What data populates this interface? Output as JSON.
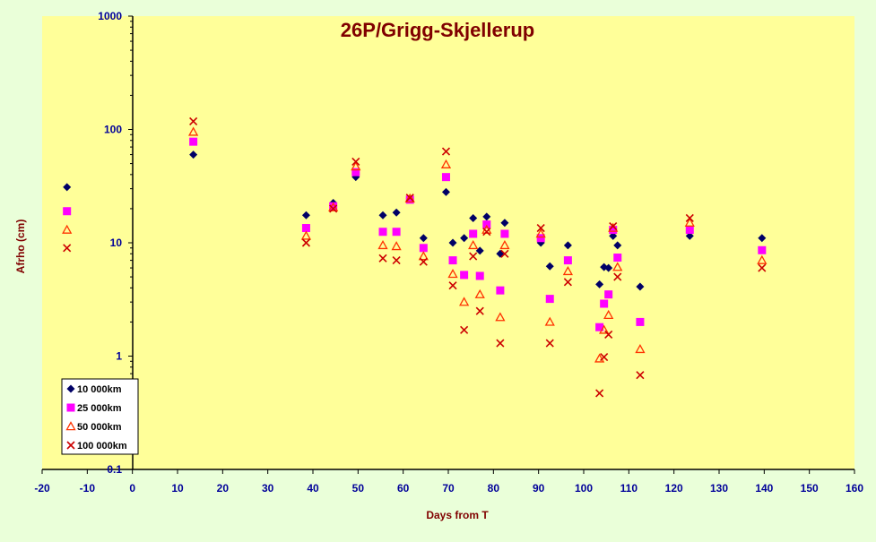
{
  "chart_data": {
    "type": "scatter",
    "title": "26P/Grigg-Skjellerup",
    "xlabel": "Days from  T",
    "ylabel": "Afrho (cm)",
    "xlim": [
      -20,
      160
    ],
    "ylim": [
      0.1,
      1000
    ],
    "yscale": "log",
    "x_ticks": [
      "-20",
      "-10",
      "0",
      "10",
      "20",
      "30",
      "40",
      "50",
      "60",
      "70",
      "80",
      "90",
      "100",
      "110",
      "120",
      "130",
      "140",
      "150",
      "160"
    ],
    "y_ticks": [
      "0.1",
      "1",
      "10",
      "100",
      "1000"
    ],
    "grid": false,
    "legend_position": "bottom-left",
    "colors": {
      "background": "#ffff99",
      "title": "#800000",
      "tick_labels": "#000099",
      "axis_title": "#800000"
    },
    "series": [
      {
        "name": "10 000km",
        "marker": "diamond",
        "color": "#000066",
        "points": [
          [
            -14.5,
            31
          ],
          [
            13.5,
            60
          ],
          [
            38.5,
            17.5
          ],
          [
            44.5,
            22.5
          ],
          [
            49.5,
            38
          ],
          [
            55.5,
            17.5
          ],
          [
            58.5,
            18.5
          ],
          [
            61.5,
            24.5
          ],
          [
            64.5,
            11
          ],
          [
            69.5,
            28
          ],
          [
            71,
            10
          ],
          [
            73.5,
            11
          ],
          [
            75.5,
            16.5
          ],
          [
            77,
            8.5
          ],
          [
            78.5,
            17
          ],
          [
            81.5,
            8
          ],
          [
            82.5,
            15
          ],
          [
            90.5,
            10
          ],
          [
            92.5,
            6.2
          ],
          [
            96.5,
            9.5
          ],
          [
            103.5,
            4.3
          ],
          [
            104.5,
            6.1
          ],
          [
            105.5,
            6
          ],
          [
            106.5,
            11.5
          ],
          [
            107.5,
            9.5
          ],
          [
            112.5,
            4.1
          ],
          [
            123.5,
            11.5
          ],
          [
            139.5,
            11
          ]
        ]
      },
      {
        "name": "25 000km",
        "marker": "square",
        "color": "#ff00ff",
        "points": [
          [
            -14.5,
            19
          ],
          [
            13.5,
            78
          ],
          [
            38.5,
            13.5
          ],
          [
            44.5,
            21
          ],
          [
            49.5,
            42
          ],
          [
            55.5,
            12.5
          ],
          [
            58.5,
            12.5
          ],
          [
            61.5,
            24
          ],
          [
            64.5,
            9
          ],
          [
            69.5,
            38
          ],
          [
            71,
            7
          ],
          [
            73.5,
            5.2
          ],
          [
            75.5,
            12
          ],
          [
            77,
            5.1
          ],
          [
            78.5,
            14.5
          ],
          [
            81.5,
            3.8
          ],
          [
            82.5,
            12
          ],
          [
            90.5,
            11
          ],
          [
            92.5,
            3.2
          ],
          [
            96.5,
            7
          ],
          [
            103.5,
            1.8
          ],
          [
            104.5,
            2.9
          ],
          [
            105.5,
            3.5
          ],
          [
            106.5,
            13
          ],
          [
            107.5,
            7.4
          ],
          [
            112.5,
            2
          ],
          [
            123.5,
            13
          ],
          [
            139.5,
            8.6
          ]
        ]
      },
      {
        "name": "50 000km",
        "marker": "triangle",
        "color": "#ff3300",
        "points": [
          [
            -14.5,
            13
          ],
          [
            13.5,
            95
          ],
          [
            38.5,
            11.5
          ],
          [
            44.5,
            20.5
          ],
          [
            49.5,
            47
          ],
          [
            55.5,
            9.5
          ],
          [
            58.5,
            9.3
          ],
          [
            61.5,
            24.5
          ],
          [
            64.5,
            7.6
          ],
          [
            69.5,
            49
          ],
          [
            71,
            5.3
          ],
          [
            73.5,
            3
          ],
          [
            75.5,
            9.5
          ],
          [
            77,
            3.5
          ],
          [
            78.5,
            13
          ],
          [
            81.5,
            2.2
          ],
          [
            82.5,
            9.5
          ],
          [
            90.5,
            12
          ],
          [
            92.5,
            2
          ],
          [
            96.5,
            5.6
          ],
          [
            103.5,
            0.95
          ],
          [
            104.5,
            1.7
          ],
          [
            105.5,
            2.3
          ],
          [
            106.5,
            13.5
          ],
          [
            107.5,
            6.1
          ],
          [
            112.5,
            1.15
          ],
          [
            123.5,
            15
          ],
          [
            139.5,
            7
          ]
        ]
      },
      {
        "name": "100 000km",
        "marker": "x",
        "color": "#cc0000",
        "points": [
          [
            -14.5,
            9
          ],
          [
            13.5,
            118
          ],
          [
            38.5,
            10
          ],
          [
            44.5,
            20
          ],
          [
            49.5,
            52
          ],
          [
            55.5,
            7.3
          ],
          [
            58.5,
            7
          ],
          [
            61.5,
            25
          ],
          [
            64.5,
            6.8
          ],
          [
            69.5,
            64
          ],
          [
            71,
            4.2
          ],
          [
            73.5,
            1.7
          ],
          [
            75.5,
            7.6
          ],
          [
            77,
            2.5
          ],
          [
            78.5,
            12.5
          ],
          [
            81.5,
            1.3
          ],
          [
            82.5,
            8
          ],
          [
            90.5,
            13.5
          ],
          [
            92.5,
            1.3
          ],
          [
            96.5,
            4.5
          ],
          [
            103.5,
            0.47
          ],
          [
            104.5,
            0.98
          ],
          [
            105.5,
            1.55
          ],
          [
            106.5,
            14
          ],
          [
            107.5,
            5
          ],
          [
            112.5,
            0.68
          ],
          [
            123.5,
            16.5
          ],
          [
            139.5,
            6
          ]
        ]
      }
    ]
  }
}
